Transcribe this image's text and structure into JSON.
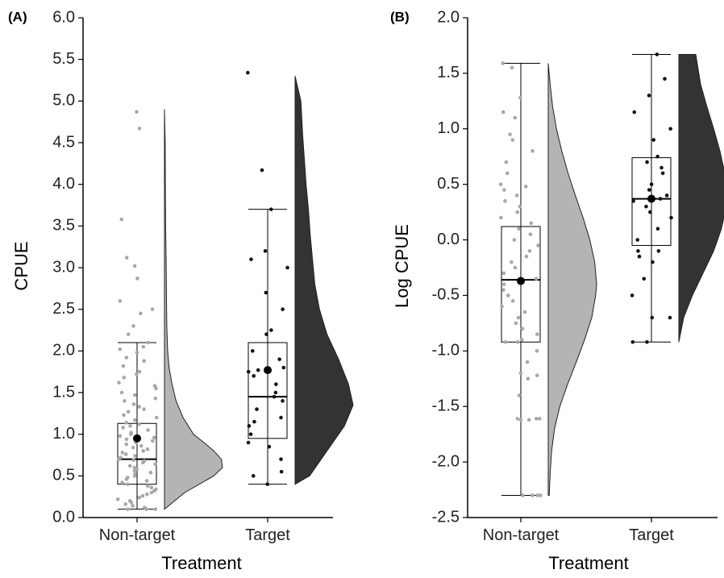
{
  "chart_data": [
    {
      "panel_label": "(A)",
      "type": "boxplot+violin+scatter",
      "xlabel": "Treatment",
      "ylabel": "CPUE",
      "categories": [
        "Non-target",
        "Target"
      ],
      "ylim": [
        0,
        6
      ],
      "yticks": [
        "0.0",
        "0.5",
        "1.0",
        "1.5",
        "2.0",
        "2.5",
        "3.0",
        "3.5",
        "4.0",
        "4.5",
        "5.0",
        "5.5",
        "6.0"
      ],
      "series": [
        {
          "category": "Non-target",
          "color": "#b4b4b4",
          "box": {
            "min": 0.1,
            "q1": 0.4,
            "median": 0.7,
            "q3": 1.13,
            "max": 2.1
          },
          "mean": 0.95,
          "points": [
            4.87,
            4.67,
            3.58,
            3.12,
            3.02,
            2.87,
            2.6,
            2.5,
            2.45,
            2.3,
            2.2,
            2.1,
            2.05,
            2.02,
            1.98,
            1.92,
            1.88,
            1.82,
            1.75,
            1.72,
            1.68,
            1.62,
            1.58,
            1.55,
            1.5,
            1.47,
            1.43,
            1.4,
            1.36,
            1.33,
            1.3,
            1.27,
            1.23,
            1.2,
            1.17,
            1.14,
            1.12,
            1.1,
            1.08,
            1.05,
            1.02,
            1.0,
            0.98,
            0.96,
            0.94,
            0.92,
            0.9,
            0.88,
            0.86,
            0.84,
            0.82,
            0.8,
            0.78,
            0.76,
            0.74,
            0.72,
            0.7,
            0.69,
            0.68,
            0.66,
            0.64,
            0.62,
            0.6,
            0.58,
            0.56,
            0.54,
            0.52,
            0.5,
            0.48,
            0.46,
            0.44,
            0.42,
            0.4,
            0.38,
            0.36,
            0.34,
            0.32,
            0.3,
            0.28,
            0.26,
            0.24,
            0.22,
            0.2,
            0.18,
            0.16,
            0.14,
            0.12,
            0.1,
            0.1,
            0.1
          ],
          "density": [
            [
              0.1,
              0.0
            ],
            [
              0.3,
              0.35
            ],
            [
              0.5,
              0.85
            ],
            [
              0.6,
              1.0
            ],
            [
              0.7,
              0.98
            ],
            [
              0.8,
              0.85
            ],
            [
              0.9,
              0.68
            ],
            [
              1.0,
              0.5
            ],
            [
              1.2,
              0.32
            ],
            [
              1.4,
              0.2
            ],
            [
              1.6,
              0.13
            ],
            [
              1.8,
              0.08
            ],
            [
              2.0,
              0.055
            ],
            [
              2.3,
              0.04
            ],
            [
              2.6,
              0.035
            ],
            [
              3.0,
              0.03
            ],
            [
              3.5,
              0.02
            ],
            [
              4.0,
              0.015
            ],
            [
              4.5,
              0.012
            ],
            [
              4.9,
              0.0
            ]
          ]
        },
        {
          "category": "Target",
          "color": "#333333",
          "box": {
            "min": 0.4,
            "q1": 0.95,
            "median": 1.45,
            "q3": 2.1,
            "max": 3.7
          },
          "mean": 1.77,
          "points": [
            5.34,
            4.17,
            3.7,
            3.2,
            3.1,
            3.0,
            2.7,
            2.5,
            2.25,
            2.2,
            2.0,
            1.9,
            1.8,
            1.77,
            1.75,
            1.7,
            1.6,
            1.5,
            1.45,
            1.4,
            1.3,
            1.2,
            1.15,
            1.1,
            1.0,
            0.9,
            0.85,
            0.7,
            0.55,
            0.5,
            0.4
          ],
          "density": [
            [
              0.4,
              0.0
            ],
            [
              0.5,
              0.25
            ],
            [
              0.8,
              0.55
            ],
            [
              1.1,
              0.85
            ],
            [
              1.35,
              1.0
            ],
            [
              1.6,
              0.92
            ],
            [
              1.9,
              0.75
            ],
            [
              2.2,
              0.55
            ],
            [
              2.5,
              0.42
            ],
            [
              2.8,
              0.34
            ],
            [
              3.1,
              0.3
            ],
            [
              3.4,
              0.26
            ],
            [
              3.7,
              0.23
            ],
            [
              4.0,
              0.19
            ],
            [
              4.3,
              0.16
            ],
            [
              4.6,
              0.13
            ],
            [
              5.0,
              0.1
            ],
            [
              5.3,
              0.0
            ]
          ]
        }
      ]
    },
    {
      "panel_label": "(B)",
      "type": "boxplot+violin+scatter",
      "xlabel": "Treatment",
      "ylabel": "Log CPUE",
      "categories": [
        "Non-target",
        "Target"
      ],
      "ylim": [
        -2.5,
        2.0
      ],
      "yticks": [
        "-2.5",
        "-2.0",
        "-1.5",
        "-1.0",
        "-0.5",
        "0.0",
        "0.5",
        "1.0",
        "1.5",
        "2.0"
      ],
      "series": [
        {
          "category": "Non-target",
          "color": "#b4b4b4",
          "box": {
            "min": -2.3,
            "q1": -0.92,
            "median": -0.36,
            "q3": 0.12,
            "max": 1.59
          },
          "mean": -0.37,
          "points": [
            1.59,
            1.55,
            1.28,
            1.15,
            1.1,
            0.95,
            0.9,
            0.8,
            0.7,
            0.6,
            0.5,
            0.48,
            0.45,
            0.4,
            0.35,
            0.3,
            0.25,
            0.2,
            0.15,
            0.1,
            0.05,
            0.0,
            -0.05,
            -0.1,
            -0.15,
            -0.2,
            -0.25,
            -0.3,
            -0.35,
            -0.4,
            -0.45,
            -0.5,
            -0.55,
            -0.6,
            -0.65,
            -0.7,
            -0.75,
            -0.8,
            -0.85,
            -0.9,
            -0.92,
            -0.92,
            -1.0,
            -1.1,
            -1.2,
            -1.22,
            -1.25,
            -1.4,
            -1.61,
            -1.61,
            -1.61,
            -1.62,
            -1.62,
            -2.3,
            -2.3,
            -2.3,
            -2.3
          ],
          "density": [
            [
              -2.3,
              0.02
            ],
            [
              -2.1,
              0.04
            ],
            [
              -1.9,
              0.07
            ],
            [
              -1.7,
              0.13
            ],
            [
              -1.5,
              0.24
            ],
            [
              -1.3,
              0.4
            ],
            [
              -1.1,
              0.58
            ],
            [
              -0.9,
              0.75
            ],
            [
              -0.7,
              0.9
            ],
            [
              -0.5,
              0.98
            ],
            [
              -0.4,
              1.0
            ],
            [
              -0.2,
              0.96
            ],
            [
              0.0,
              0.86
            ],
            [
              0.2,
              0.72
            ],
            [
              0.4,
              0.56
            ],
            [
              0.6,
              0.41
            ],
            [
              0.8,
              0.28
            ],
            [
              1.0,
              0.17
            ],
            [
              1.2,
              0.09
            ],
            [
              1.4,
              0.04
            ],
            [
              1.59,
              0.0
            ]
          ]
        },
        {
          "category": "Target",
          "color": "#333333",
          "box": {
            "min": -0.92,
            "q1": -0.05,
            "median": 0.37,
            "q3": 0.74,
            "max": 1.67
          },
          "mean": 0.37,
          "points": [
            1.67,
            1.45,
            1.3,
            1.15,
            1.0,
            0.9,
            0.75,
            0.7,
            0.65,
            0.6,
            0.5,
            0.45,
            0.4,
            0.37,
            0.35,
            0.3,
            0.25,
            0.2,
            0.1,
            0.0,
            -0.1,
            -0.1,
            -0.15,
            -0.2,
            -0.35,
            -0.5,
            -0.7,
            -0.7,
            -0.92,
            -0.92
          ],
          "density": [
            [
              -0.92,
              0.0
            ],
            [
              -0.7,
              0.1
            ],
            [
              -0.5,
              0.28
            ],
            [
              -0.3,
              0.5
            ],
            [
              -0.1,
              0.72
            ],
            [
              0.1,
              0.88
            ],
            [
              0.3,
              0.98
            ],
            [
              0.45,
              1.0
            ],
            [
              0.6,
              0.95
            ],
            [
              0.8,
              0.85
            ],
            [
              1.0,
              0.72
            ],
            [
              1.2,
              0.58
            ],
            [
              1.4,
              0.45
            ],
            [
              1.67,
              0.35
            ]
          ]
        }
      ]
    }
  ]
}
